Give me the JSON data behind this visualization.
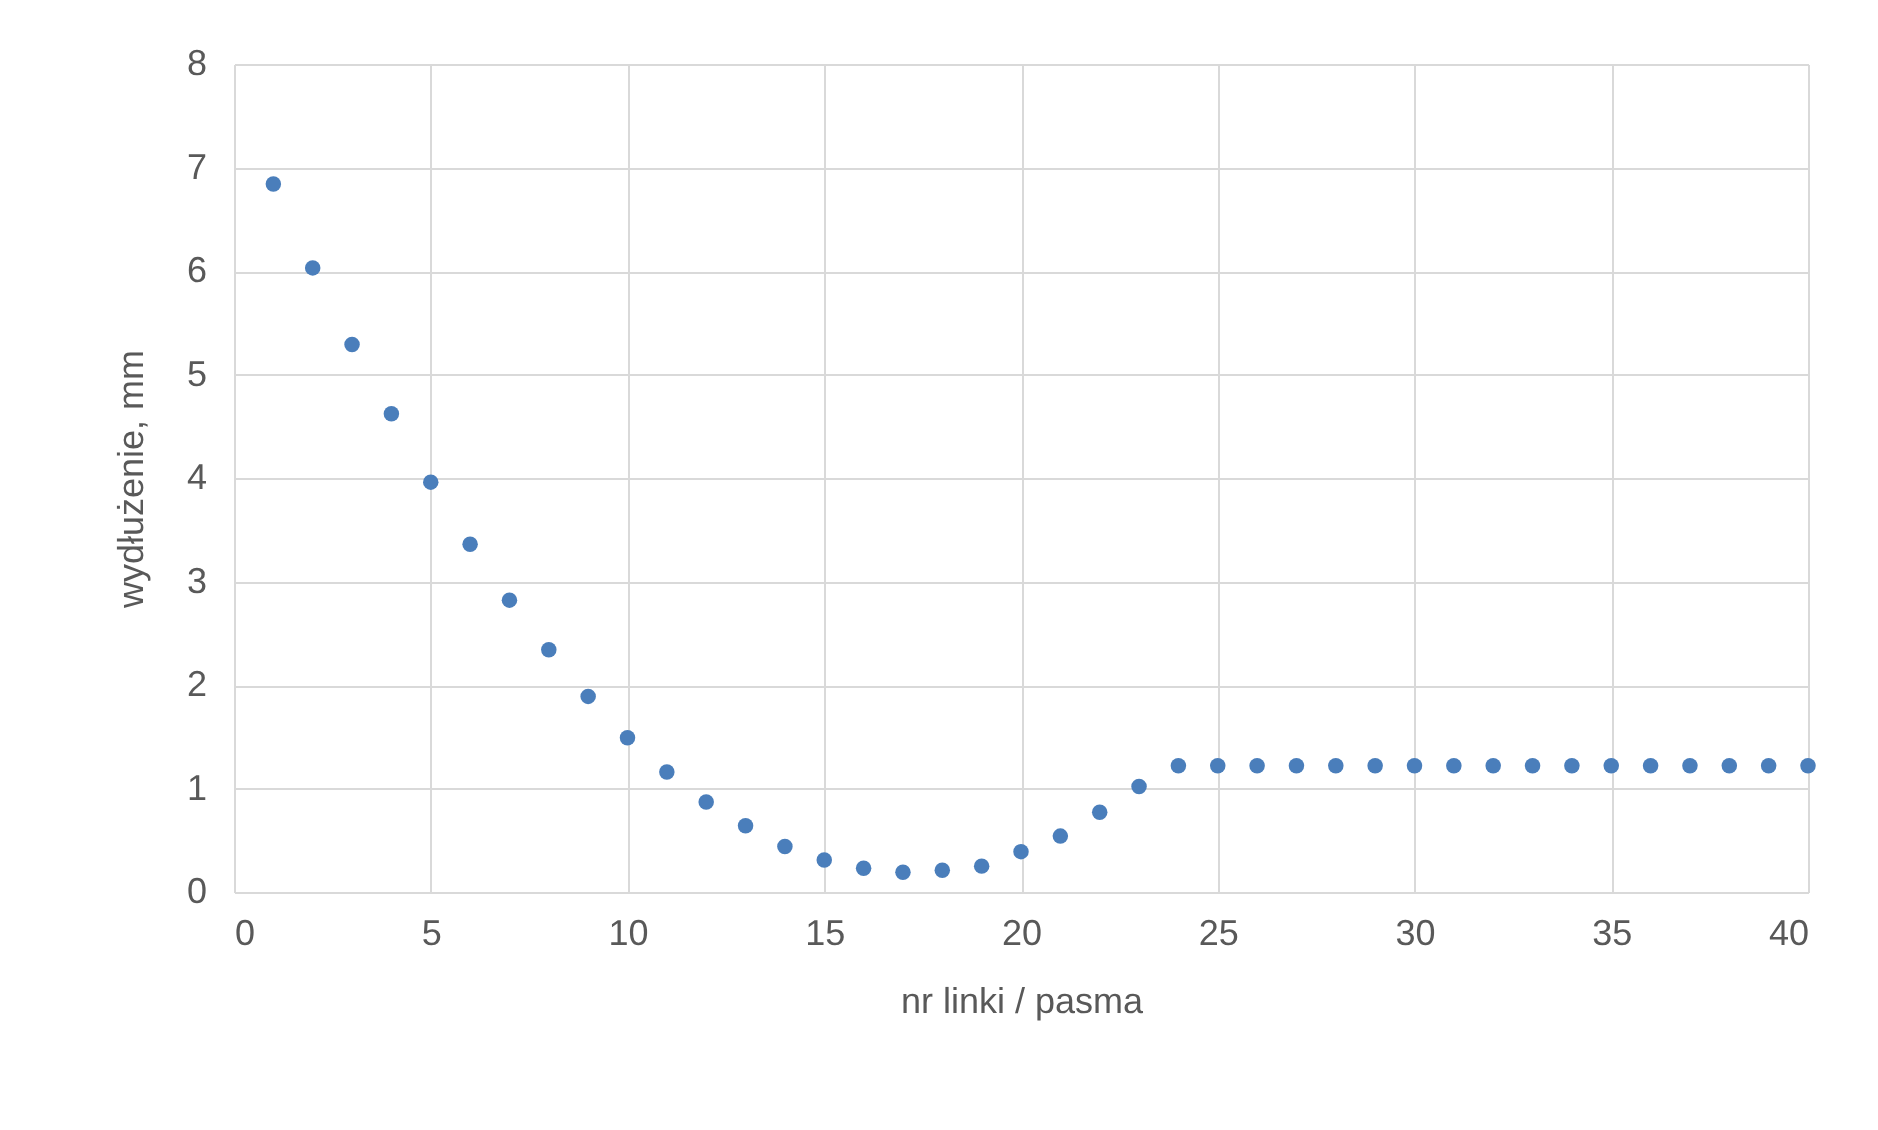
{
  "chart_data": {
    "type": "scatter",
    "xlabel": "nr linki / pasma",
    "ylabel": "wydłużenie, mm",
    "x": [
      1,
      2,
      3,
      4,
      5,
      6,
      7,
      8,
      9,
      10,
      11,
      12,
      13,
      14,
      15,
      16,
      17,
      18,
      19,
      20,
      21,
      22,
      23,
      24,
      25,
      26,
      27,
      28,
      29,
      30,
      31,
      32,
      33,
      34,
      35,
      36,
      37,
      38,
      39,
      40
    ],
    "series": [
      {
        "color": "#4a7ebb",
        "values": [
          6.84,
          6.03,
          5.29,
          4.62,
          3.96,
          3.36,
          2.82,
          2.34,
          1.89,
          1.49,
          1.16,
          0.87,
          0.64,
          0.44,
          0.31,
          0.23,
          0.19,
          0.21,
          0.25,
          0.39,
          0.54,
          0.77,
          1.02,
          1.22,
          1.22,
          1.22,
          1.22,
          1.22,
          1.22,
          1.22,
          1.22,
          1.22,
          1.22,
          1.22,
          1.22,
          1.22,
          1.22,
          1.22,
          1.22,
          1.22
        ]
      }
    ],
    "xlim": [
      0,
      40
    ],
    "xticks": [
      0,
      5,
      10,
      15,
      20,
      25,
      30,
      35,
      40
    ],
    "ylim": [
      0,
      8
    ],
    "yticks": [
      0,
      1,
      2,
      3,
      4,
      5,
      6,
      7,
      8
    ],
    "grid": true,
    "marker": "circle"
  }
}
